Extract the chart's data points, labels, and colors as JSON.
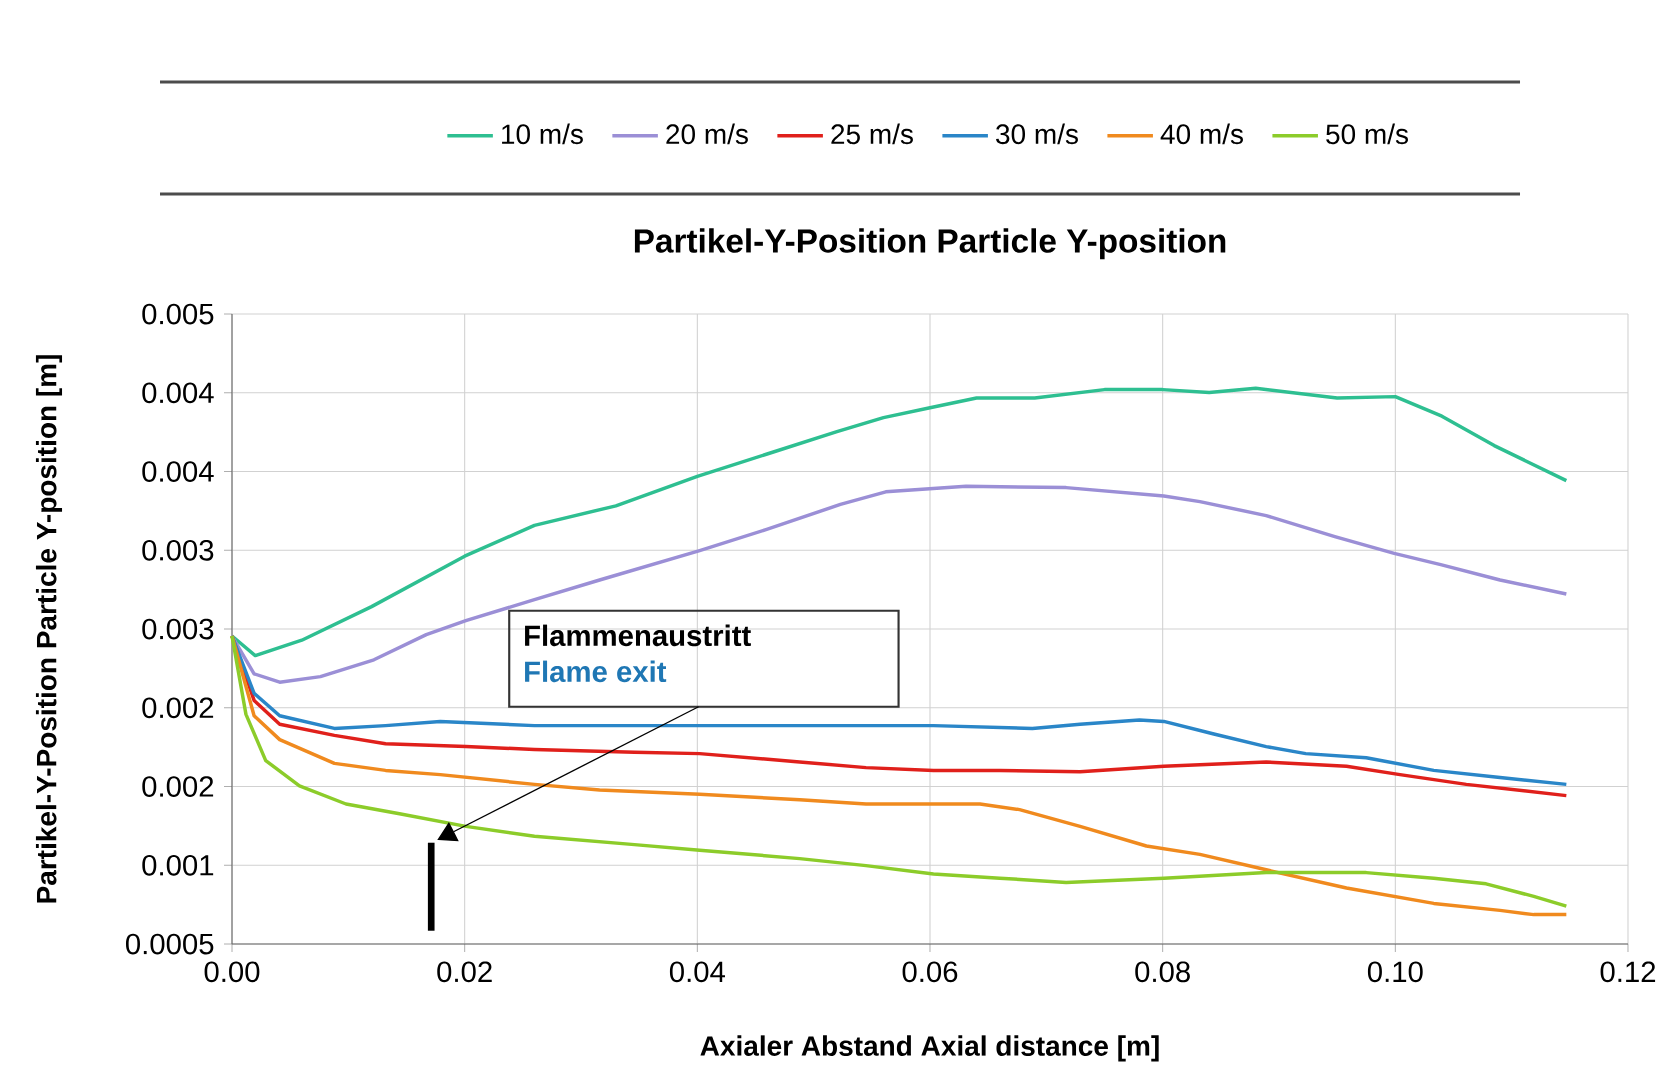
{
  "chart_data": {
    "type": "line",
    "title": "Partikel-Y-Position Particle Y-position",
    "xlabel": "Axialer Abstand Axial distance [m]",
    "ylabel": "Partikel-Y-Position Particle Y-position [m]",
    "annotations": [
      "Flammenaustritt",
      "Flame exit"
    ],
    "xlim": [
      0,
      0.12
    ],
    "ylim": [
      0.0005,
      0.005
    ],
    "xticks": [
      {
        "value": 0,
        "label": "0.00"
      },
      {
        "value": 0.02,
        "label": "0.02"
      },
      {
        "value": 0.04,
        "label": "0.04"
      },
      {
        "value": 0.06,
        "label": "0.06"
      },
      {
        "value": 0.08,
        "label": "0.08"
      },
      {
        "value": 0.1,
        "label": "0.10"
      },
      {
        "value": 0.12,
        "label": "0.12"
      }
    ],
    "yticks": [
      {
        "value": 0.0005,
        "label": "0.0005"
      },
      {
        "value": 0.0010625,
        "label": "0.001"
      },
      {
        "value": 0.001625,
        "label": "0.002"
      },
      {
        "value": 0.0021875,
        "label": "0.002"
      },
      {
        "value": 0.00275,
        "label": "0.003"
      },
      {
        "value": 0.0033125,
        "label": "0.003"
      },
      {
        "value": 0.003875,
        "label": "0.004"
      },
      {
        "value": 0.0044375,
        "label": "0.004"
      },
      {
        "value": 0.005,
        "label": "0.005"
      }
    ],
    "grid": true,
    "legend": "top",
    "series": [
      {
        "name": "10 m/s",
        "color": "#2ebf91",
        "x": [
          0,
          0.002,
          0.006,
          0.012,
          0.02,
          0.026,
          0.033,
          0.04,
          0.046,
          0.052,
          0.056,
          0.06,
          0.064,
          0.069,
          0.075,
          0.08,
          0.084,
          0.088,
          0.095,
          0.1,
          0.104,
          0.1085,
          0.1147
        ],
        "values": [
          0.0027,
          0.00256,
          0.00267,
          0.00291,
          0.00327,
          0.00349,
          0.00363,
          0.00384,
          0.004,
          0.00416,
          0.00426,
          0.00433,
          0.0044,
          0.0044,
          0.00446,
          0.00446,
          0.00444,
          0.00447,
          0.0044,
          0.00441,
          0.00427,
          0.00406,
          0.00381
        ]
      },
      {
        "name": "20 m/s",
        "color": "#9b8fd6",
        "x": [
          0,
          0.0019,
          0.0041,
          0.0076,
          0.0122,
          0.0167,
          0.0201,
          0.026,
          0.0316,
          0.0402,
          0.0459,
          0.0523,
          0.0562,
          0.0631,
          0.0717,
          0.0801,
          0.0832,
          0.0889,
          0.0948,
          0.0999,
          0.1039,
          0.109,
          0.1147
        ],
        "values": [
          0.0027,
          0.00243,
          0.00237,
          0.00241,
          0.00253,
          0.00271,
          0.00281,
          0.00296,
          0.0031,
          0.00331,
          0.00346,
          0.00364,
          0.00373,
          0.00377,
          0.00376,
          0.0037,
          0.00366,
          0.00356,
          0.00341,
          0.00329,
          0.00321,
          0.0031,
          0.003
        ]
      },
      {
        "name": "25 m/s",
        "color": "#e0201b",
        "x": [
          0,
          0.0019,
          0.0041,
          0.0088,
          0.0132,
          0.0201,
          0.026,
          0.0346,
          0.0402,
          0.0488,
          0.0545,
          0.0603,
          0.066,
          0.0729,
          0.0801,
          0.0889,
          0.0958,
          0.1004,
          0.1061,
          0.1147
        ],
        "values": [
          0.0027,
          0.00224,
          0.00207,
          0.00199,
          0.00193,
          0.00191,
          0.00189,
          0.00187,
          0.00186,
          0.0018,
          0.00176,
          0.00174,
          0.00174,
          0.00173,
          0.00177,
          0.0018,
          0.00177,
          0.00171,
          0.00164,
          0.00156
        ]
      },
      {
        "name": "30 m/s",
        "color": "#2a86c8",
        "x": [
          0,
          0.0019,
          0.0041,
          0.0088,
          0.0132,
          0.0179,
          0.026,
          0.0373,
          0.0488,
          0.0603,
          0.0688,
          0.0729,
          0.078,
          0.0801,
          0.0844,
          0.0889,
          0.0923,
          0.0975,
          0.1033,
          0.109,
          0.1147
        ],
        "values": [
          0.0027,
          0.00229,
          0.00213,
          0.00204,
          0.00206,
          0.00209,
          0.00206,
          0.00206,
          0.00206,
          0.00206,
          0.00204,
          0.00207,
          0.0021,
          0.00209,
          0.002,
          0.00191,
          0.00186,
          0.00183,
          0.00174,
          0.00169,
          0.00164
        ]
      },
      {
        "name": "40 m/s",
        "color": "#f08a1e",
        "x": [
          0,
          0.0019,
          0.0041,
          0.0088,
          0.0132,
          0.0179,
          0.026,
          0.0316,
          0.0402,
          0.0488,
          0.0545,
          0.0643,
          0.0677,
          0.0729,
          0.0786,
          0.0832,
          0.0889,
          0.0958,
          0.1033,
          0.109,
          0.1119,
          0.1147
        ],
        "values": [
          0.0027,
          0.00213,
          0.00196,
          0.00179,
          0.00174,
          0.00171,
          0.00164,
          0.0016,
          0.00157,
          0.00153,
          0.0015,
          0.0015,
          0.00146,
          0.00134,
          0.0012,
          0.00114,
          0.00103,
          0.0009,
          0.00079,
          0.00074,
          0.00071,
          0.00071
        ]
      },
      {
        "name": "50 m/s",
        "color": "#8ccc2a",
        "x": [
          0,
          0.0012,
          0.0029,
          0.0058,
          0.0098,
          0.0144,
          0.0201,
          0.026,
          0.0346,
          0.0402,
          0.0488,
          0.0545,
          0.0603,
          0.066,
          0.0717,
          0.0801,
          0.0889,
          0.0975,
          0.1033,
          0.1078,
          0.1119,
          0.1147
        ],
        "values": [
          0.0027,
          0.00214,
          0.00181,
          0.00163,
          0.0015,
          0.00143,
          0.00134,
          0.00127,
          0.00121,
          0.00117,
          0.00111,
          0.00106,
          0.001,
          0.00097,
          0.00094,
          0.00097,
          0.00101,
          0.00101,
          0.00097,
          0.00093,
          0.00084,
          0.00077
        ]
      }
    ]
  }
}
